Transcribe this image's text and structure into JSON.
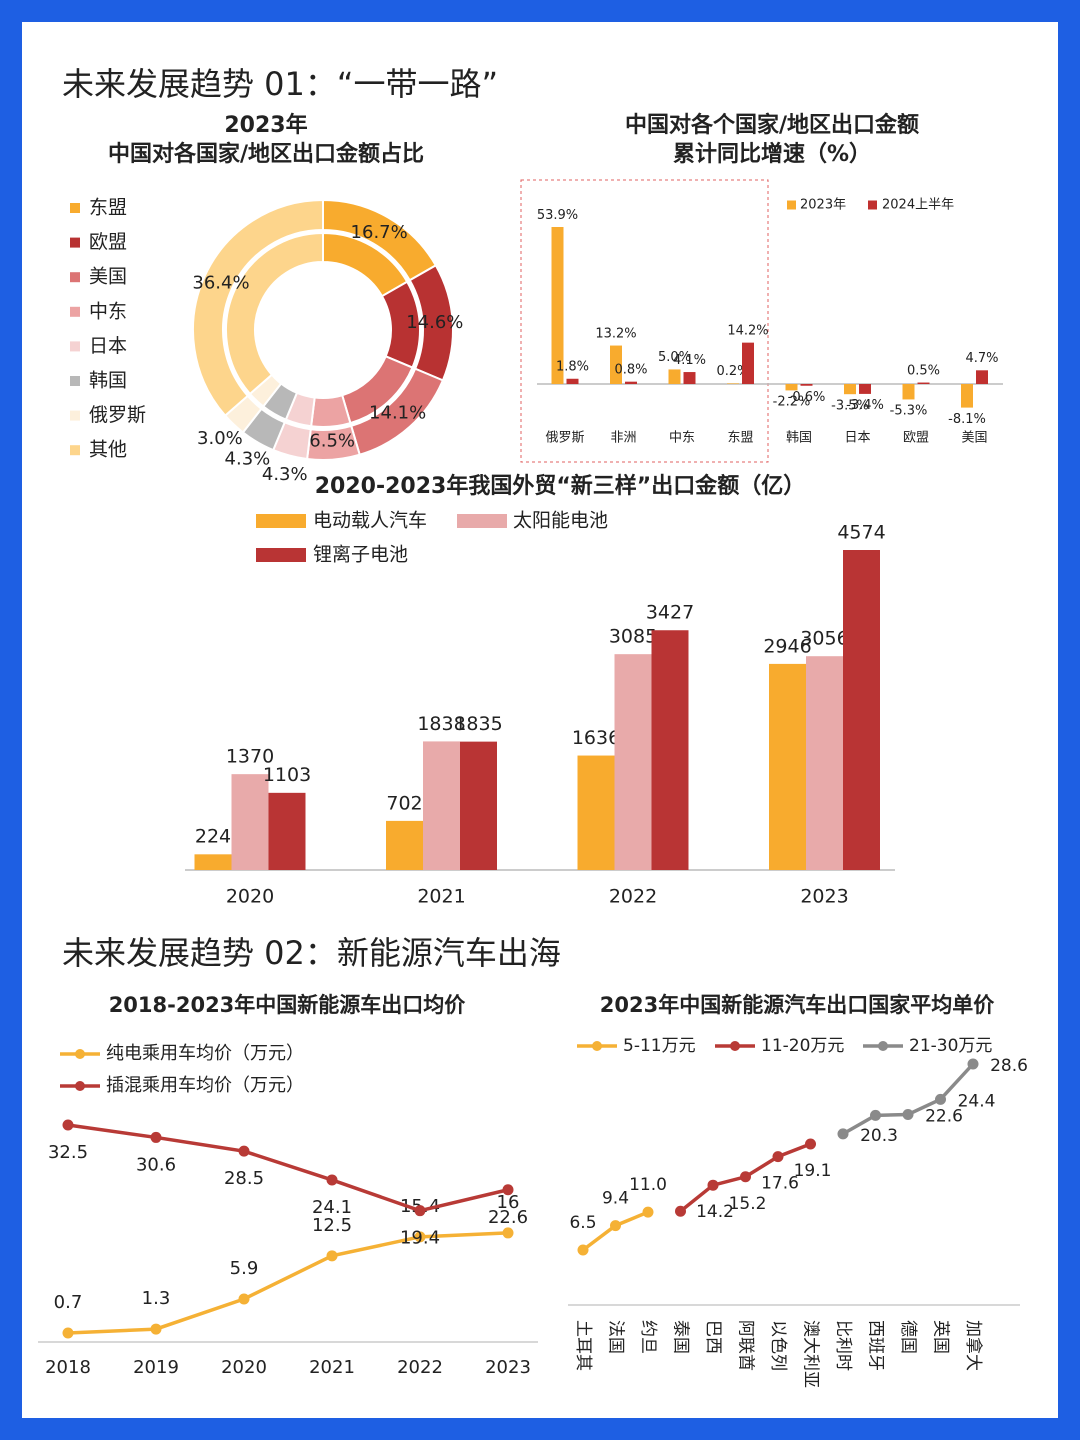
{
  "headings": [
    "未来发展趋势 01：“一带一路”",
    "未来发展趋势 02：新能源汽车出海"
  ],
  "chart_data": [
    {
      "type": "pie",
      "title": "2023年",
      "subtitle": "中国对各国家/地区出口金额占比",
      "categories": [
        "东盟",
        "欧盟",
        "美国",
        "中东",
        "日本",
        "韩国",
        "俄罗斯",
        "其他"
      ],
      "values": [
        16.7,
        14.6,
        14.1,
        6.5,
        4.3,
        4.3,
        3.0,
        36.4
      ],
      "value_labels": [
        "16.7%",
        "14.6%",
        "14.1%",
        "6.5%",
        "4.3%",
        "4.3%",
        "3.0%",
        "36.4%"
      ],
      "colors": [
        "#f8ab2e",
        "#b83232",
        "#dc7474",
        "#eca3a3",
        "#f5d2d2",
        "#b8b8b8",
        "#fdf0dc",
        "#fdd58c"
      ]
    },
    {
      "type": "bar",
      "title": "中国对各个国家/地区出口金额",
      "subtitle": "累计同比增速（%）",
      "categories": [
        "俄罗斯",
        "非洲",
        "中东",
        "东盟",
        "韩国",
        "日本",
        "欧盟",
        "美国"
      ],
      "series": [
        {
          "name": "2023年",
          "color": "#f8ab2e",
          "values": [
            53.9,
            13.2,
            5.0,
            0.2,
            -2.2,
            -3.5,
            -5.3,
            -8.1
          ],
          "value_labels": [
            "53.9%",
            "13.2%",
            "5.0%",
            "0.2%",
            "-2.2%",
            "-3.5%",
            "-5.3%",
            "-8.1%"
          ]
        },
        {
          "name": "2024上半年",
          "color": "#c0302f",
          "values": [
            1.8,
            0.8,
            4.1,
            14.2,
            -0.6,
            -3.4,
            0.5,
            4.7
          ],
          "value_labels": [
            "1.8%",
            "0.8%",
            "4.1%",
            "14.2%",
            "-0.6%",
            "-3.4%",
            "0.5%",
            "4.7%"
          ]
        }
      ]
    },
    {
      "type": "bar",
      "title": "2020-2023年我国外贸“新三样”出口金额（亿）",
      "categories": [
        "2020",
        "2021",
        "2022",
        "2023"
      ],
      "series": [
        {
          "name": "电动载人汽车",
          "color": "#f8ab2e",
          "values": [
            224,
            702,
            1636,
            2946
          ]
        },
        {
          "name": "太阳能电池",
          "color": "#e8aaaa",
          "values": [
            1370,
            1838,
            3085,
            3056
          ]
        },
        {
          "name": "锂离子电池",
          "color": "#b93434",
          "values": [
            1103,
            1835,
            3427,
            4574
          ]
        }
      ]
    },
    {
      "type": "line",
      "title": "2018-2023年中国新能源车出口均价",
      "categories": [
        "2018",
        "2019",
        "2020",
        "2021",
        "2022",
        "2023"
      ],
      "series": [
        {
          "name": "纯电乘用车均价（万元）",
          "color": "#f5b135",
          "values": [
            0.7,
            1.3,
            5.9,
            12.5,
            15.4,
            16
          ]
        },
        {
          "name": "插混乘用车均价（万元）",
          "color": "#b83a36",
          "values": [
            32.5,
            30.6,
            28.5,
            24.1,
            19.4,
            22.6
          ]
        }
      ]
    },
    {
      "type": "line",
      "title": "2023年中国新能源汽车出口国家平均单价",
      "categories": [
        "土耳其",
        "法国",
        "约旦",
        "泰国",
        "巴西",
        "阿联酋",
        "以色列",
        "澳大利亚",
        "比利时",
        "西班牙",
        "德国",
        "英国",
        "加拿大"
      ],
      "series": [
        {
          "name": "5-11万元",
          "color": "#f5b135",
          "values": [
            6.5,
            9.4,
            11.0,
            null,
            null,
            null,
            null,
            null,
            null,
            null,
            null,
            null,
            null
          ],
          "value_labels": [
            "6.5",
            "9.4",
            "11.0",
            null,
            null,
            null,
            null,
            null,
            null,
            null,
            null,
            null,
            null
          ]
        },
        {
          "name": "11-20万元",
          "color": "#b83a36",
          "values": [
            null,
            null,
            null,
            11.1,
            14.2,
            15.2,
            17.6,
            19.1,
            null,
            null,
            null,
            null,
            null
          ],
          "value_labels": [
            null,
            null,
            null,
            null,
            "14.2",
            "15.2",
            "17.6",
            "19.1",
            null,
            null,
            null,
            null,
            null
          ]
        },
        {
          "name": "21-30万元",
          "color": "#8a8a8a",
          "values": [
            null,
            null,
            null,
            null,
            null,
            null,
            null,
            null,
            20.3,
            22.5,
            22.6,
            24.4,
            28.6
          ],
          "value_labels": [
            null,
            null,
            null,
            null,
            null,
            null,
            null,
            null,
            "20.3",
            null,
            "22.6",
            "24.4",
            "28.6"
          ]
        }
      ]
    }
  ]
}
